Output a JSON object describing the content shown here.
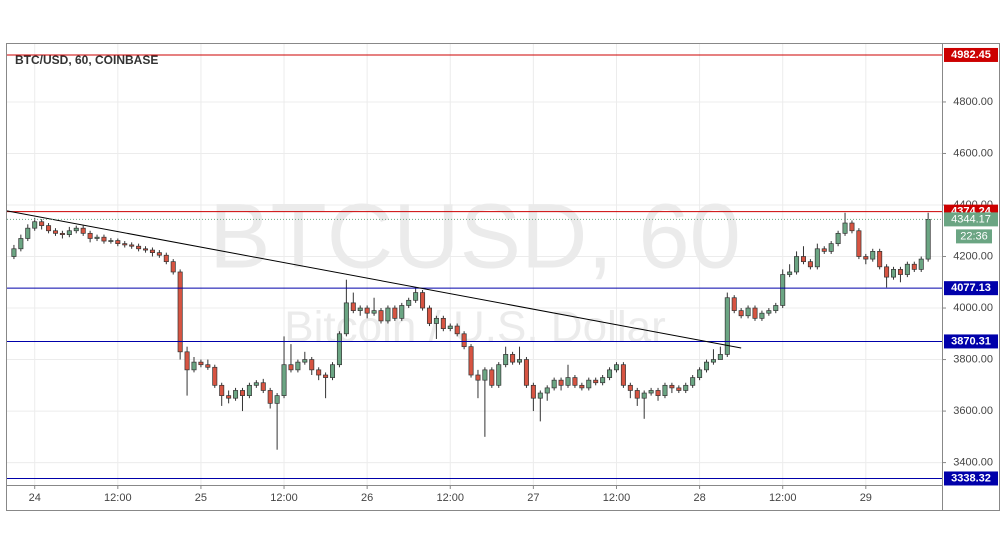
{
  "chart_data": {
    "type": "candlestick",
    "title": "BTC/USD, 60, COINBASE",
    "watermark": "BTCUSD, 60",
    "watermark_subtitle": "Bitcoin / U.S. Dollar",
    "x": [
      -3,
      -2,
      -1,
      0,
      1,
      2,
      3,
      4,
      5,
      6,
      7,
      8,
      9,
      10,
      11,
      12,
      13,
      14,
      15,
      16,
      17,
      18,
      19,
      20,
      21,
      22,
      23,
      24,
      25,
      26,
      27,
      28,
      29,
      30,
      31,
      32,
      33,
      34,
      35,
      36,
      37,
      38,
      39,
      40,
      41,
      42,
      43,
      44,
      45,
      46,
      47,
      48,
      49,
      50,
      51,
      52,
      53,
      54,
      55,
      56,
      57,
      58,
      59,
      60,
      61,
      62,
      63,
      64,
      65,
      66,
      67,
      68,
      69,
      70,
      71,
      72,
      73,
      74,
      75,
      76,
      77,
      78,
      79,
      80,
      81,
      82,
      83,
      84,
      85,
      86,
      87,
      88,
      89,
      90,
      91,
      92,
      93,
      94,
      95,
      96,
      97,
      98,
      99,
      100,
      101,
      102,
      103,
      104,
      105,
      106,
      107,
      108,
      109,
      110,
      111,
      112,
      113,
      114,
      115,
      116,
      117,
      118,
      119,
      120,
      121,
      122,
      123,
      124,
      125,
      126,
      127,
      128,
      129
    ],
    "open": [
      4200,
      4230,
      4270,
      4310,
      4335,
      4320,
      4300,
      4290,
      4285,
      4300,
      4310,
      4290,
      4270,
      4275,
      4260,
      4262,
      4250,
      4245,
      4240,
      4230,
      4225,
      4215,
      4205,
      4180,
      4140,
      3830,
      3760,
      3790,
      3780,
      3770,
      3700,
      3660,
      3650,
      3680,
      3660,
      3700,
      3710,
      3680,
      3630,
      3660,
      3780,
      3760,
      3790,
      3800,
      3760,
      3740,
      3730,
      3780,
      3900,
      4020,
      3990,
      4000,
      3980,
      3990,
      3950,
      4000,
      3960,
      4010,
      4030,
      4060,
      4000,
      3940,
      3960,
      3920,
      3930,
      3900,
      3850,
      3740,
      3720,
      3760,
      3700,
      3780,
      3820,
      3790,
      3800,
      3700,
      3650,
      3670,
      3690,
      3720,
      3700,
      3730,
      3700,
      3690,
      3720,
      3710,
      3730,
      3760,
      3780,
      3700,
      3680,
      3650,
      3670,
      3680,
      3660,
      3700,
      3690,
      3680,
      3700,
      3730,
      3760,
      3790,
      3800,
      3820,
      4040,
      3990,
      3970,
      4000,
      3960,
      3980,
      3990,
      4010,
      4130,
      4140,
      4200,
      4180,
      4160,
      4230,
      4220,
      4250,
      4290,
      4330,
      4300,
      4200,
      4190,
      4220,
      4160,
      4120,
      4150,
      4130,
      4170,
      4150,
      4190
    ],
    "high": [
      4245,
      4285,
      4325,
      4350,
      4345,
      4330,
      4310,
      4300,
      4315,
      4320,
      4320,
      4300,
      4285,
      4285,
      4272,
      4270,
      4260,
      4255,
      4250,
      4240,
      4235,
      4225,
      4215,
      4190,
      4150,
      3850,
      3810,
      3800,
      3800,
      3780,
      3710,
      3680,
      3690,
      3690,
      3710,
      3720,
      3725,
      3690,
      3670,
      3890,
      3860,
      3800,
      3830,
      3810,
      3770,
      3750,
      3790,
      3910,
      4110,
      4060,
      4010,
      4010,
      4040,
      4000,
      4010,
      4010,
      4020,
      4040,
      4080,
      4070,
      4010,
      3970,
      3970,
      3940,
      3940,
      3910,
      3860,
      3760,
      3770,
      3770,
      3790,
      3850,
      3830,
      3850,
      3810,
      3710,
      3680,
      3700,
      3730,
      3730,
      3780,
      3740,
      3710,
      3730,
      3730,
      3740,
      3770,
      3790,
      3790,
      3710,
      3690,
      3680,
      3690,
      3690,
      3710,
      3710,
      3700,
      3710,
      3740,
      3770,
      3800,
      3840,
      3850,
      4060,
      4050,
      4000,
      4010,
      4010,
      3990,
      4000,
      4020,
      4150,
      4170,
      4220,
      4240,
      4190,
      4250,
      4240,
      4260,
      4300,
      4370,
      4340,
      4310,
      4210,
      4230,
      4230,
      4170,
      4160,
      4160,
      4180,
      4180,
      4200,
      4370
    ],
    "low": [
      4190,
      4220,
      4260,
      4300,
      4305,
      4290,
      4280,
      4270,
      4275,
      4290,
      4280,
      4255,
      4260,
      4250,
      4250,
      4240,
      4235,
      4230,
      4220,
      4215,
      4200,
      4195,
      4170,
      4130,
      3800,
      3660,
      3750,
      3770,
      3760,
      3690,
      3620,
      3630,
      3640,
      3600,
      3650,
      3690,
      3670,
      3610,
      3450,
      3650,
      3750,
      3750,
      3780,
      3740,
      3720,
      3650,
      3720,
      3770,
      3890,
      3980,
      3970,
      3960,
      3970,
      3940,
      3940,
      3950,
      3950,
      4000,
      4020,
      3990,
      3930,
      3880,
      3910,
      3910,
      3890,
      3840,
      3730,
      3650,
      3500,
      3690,
      3690,
      3770,
      3780,
      3780,
      3690,
      3600,
      3560,
      3640,
      3680,
      3680,
      3690,
      3690,
      3680,
      3680,
      3700,
      3700,
      3720,
      3750,
      3690,
      3650,
      3620,
      3570,
      3660,
      3640,
      3650,
      3670,
      3670,
      3670,
      3690,
      3720,
      3750,
      3780,
      3800,
      3810,
      3980,
      3960,
      3960,
      3950,
      3950,
      3970,
      3980,
      4000,
      4120,
      4130,
      4170,
      4150,
      4150,
      4210,
      4210,
      4240,
      4280,
      4290,
      4190,
      4170,
      4180,
      4150,
      4080,
      4110,
      4100,
      4120,
      4140,
      4140,
      4180
    ],
    "close": [
      4230,
      4270,
      4310,
      4335,
      4320,
      4300,
      4290,
      4285,
      4300,
      4310,
      4290,
      4270,
      4275,
      4260,
      4262,
      4250,
      4245,
      4240,
      4230,
      4225,
      4215,
      4205,
      4180,
      4140,
      3830,
      3760,
      3790,
      3780,
      3770,
      3700,
      3660,
      3650,
      3680,
      3660,
      3700,
      3710,
      3680,
      3630,
      3660,
      3780,
      3760,
      3790,
      3800,
      3760,
      3740,
      3730,
      3780,
      3900,
      4020,
      3990,
      4000,
      3980,
      3990,
      3950,
      4000,
      3960,
      4010,
      4030,
      4060,
      4000,
      3940,
      3960,
      3920,
      3930,
      3900,
      3850,
      3740,
      3720,
      3760,
      3700,
      3780,
      3820,
      3790,
      3800,
      3700,
      3650,
      3670,
      3690,
      3720,
      3700,
      3730,
      3700,
      3690,
      3720,
      3710,
      3730,
      3760,
      3780,
      3700,
      3680,
      3650,
      3670,
      3680,
      3660,
      3700,
      3690,
      3680,
      3700,
      3730,
      3760,
      3790,
      3800,
      3820,
      4040,
      3990,
      3970,
      4000,
      3960,
      3980,
      3990,
      4010,
      4130,
      4140,
      4200,
      4180,
      4160,
      4230,
      4220,
      4250,
      4290,
      4330,
      4300,
      4200,
      4190,
      4220,
      4160,
      4120,
      4150,
      4130,
      4170,
      4150,
      4190,
      4344.17
    ],
    "up_color": "#6ba583",
    "down_color": "#d75442",
    "xlim": [
      -4,
      131
    ],
    "ylim": [
      3313,
      5025
    ],
    "xticks": [
      {
        "value": 0,
        "label": "24"
      },
      {
        "value": 12,
        "label": "12:00"
      },
      {
        "value": 24,
        "label": "25"
      },
      {
        "value": 36,
        "label": "12:00"
      },
      {
        "value": 48,
        "label": "26"
      },
      {
        "value": 60,
        "label": "12:00"
      },
      {
        "value": 72,
        "label": "27"
      },
      {
        "value": 84,
        "label": "12:00"
      },
      {
        "value": 96,
        "label": "28"
      },
      {
        "value": 108,
        "label": "12:00"
      },
      {
        "value": 120,
        "label": "29"
      }
    ],
    "yticks": [
      {
        "value": 3400,
        "label": "3400.00"
      },
      {
        "value": 3600,
        "label": "3600.00"
      },
      {
        "value": 3800,
        "label": "3800.00"
      },
      {
        "value": 4000,
        "label": "4000.00"
      },
      {
        "value": 4200,
        "label": "4200.00"
      },
      {
        "value": 4400,
        "label": "4400.00"
      },
      {
        "value": 4600,
        "label": "4600.00"
      },
      {
        "value": 4800,
        "label": "4800.00"
      }
    ],
    "grid": true,
    "levels": [
      {
        "value": 4982.45,
        "color": "#cc0000"
      },
      {
        "value": 4374.24,
        "color": "#cc0000"
      },
      {
        "value": 4077.13,
        "color": "#0000aa"
      },
      {
        "value": 3870.31,
        "color": "#0000aa"
      },
      {
        "value": 3338.32,
        "color": "#0000aa"
      }
    ],
    "current_price_color": "#6ba583",
    "countdown": "22:36",
    "trendline": {
      "x": [
        -4,
        102
      ],
      "y": [
        4377,
        3845
      ],
      "color": "#000000"
    }
  }
}
